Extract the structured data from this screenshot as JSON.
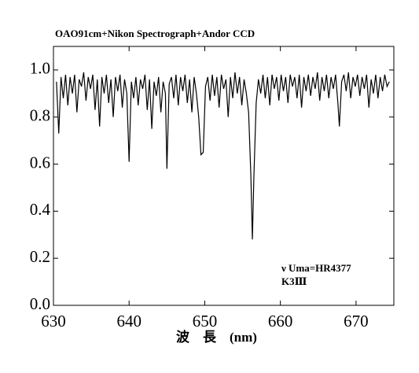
{
  "chart_data": {
    "type": "line",
    "title": "OAO91cm+Nikon Spectrograph+Andor CCD",
    "xlabel": "波　長　(nm)",
    "annotations": [
      "ν Uma=HR4377",
      "K3Ⅲ"
    ],
    "color": "#000000",
    "xlim": [
      630,
      675
    ],
    "xticks": [
      630,
      640,
      650,
      660,
      670
    ],
    "ylim": [
      0,
      1.1
    ],
    "yticks": [
      {
        "value": 0,
        "label": "0.0"
      },
      0.2,
      0.4,
      0.6,
      0.8,
      {
        "value": 1,
        "label": "1.0"
      }
    ],
    "x": [
      630.4,
      630.7,
      631.0,
      631.3,
      631.6,
      631.9,
      632.2,
      632.5,
      632.8,
      633.1,
      633.4,
      633.7,
      634.0,
      634.3,
      634.6,
      634.9,
      635.2,
      635.5,
      635.8,
      636.1,
      636.4,
      636.7,
      637.0,
      637.3,
      637.6,
      637.9,
      638.2,
      638.5,
      638.8,
      639.1,
      639.4,
      639.7,
      640.0,
      640.3,
      640.6,
      640.9,
      641.2,
      641.5,
      641.8,
      642.1,
      642.4,
      642.7,
      643.0,
      643.3,
      643.6,
      643.9,
      644.2,
      644.5,
      644.8,
      645.0,
      645.3,
      645.6,
      645.9,
      646.2,
      646.5,
      646.8,
      647.1,
      647.4,
      647.7,
      648.0,
      648.3,
      648.6,
      648.9,
      649.2,
      649.5,
      649.8,
      650.1,
      650.4,
      650.7,
      651.0,
      651.3,
      651.6,
      651.9,
      652.2,
      652.5,
      652.8,
      653.1,
      653.4,
      653.7,
      654.0,
      654.3,
      654.6,
      654.9,
      655.2,
      655.5,
      655.8,
      656.1,
      656.3,
      656.5,
      656.8,
      657.1,
      657.4,
      657.7,
      658.0,
      658.3,
      658.6,
      658.9,
      659.2,
      659.5,
      659.8,
      660.1,
      660.4,
      660.7,
      661.0,
      661.3,
      661.6,
      661.9,
      662.2,
      662.5,
      662.8,
      663.1,
      663.4,
      663.7,
      664.0,
      664.3,
      664.6,
      664.9,
      665.2,
      665.5,
      665.8,
      666.1,
      666.4,
      666.7,
      667.0,
      667.3,
      667.6,
      667.8,
      668.1,
      668.4,
      668.7,
      669.0,
      669.3,
      669.6,
      669.9,
      670.2,
      670.5,
      670.8,
      671.1,
      671.4,
      671.7,
      672.0,
      672.3,
      672.6,
      672.9,
      673.2,
      673.5,
      673.8,
      674.1,
      674.4
    ],
    "values": [
      0.95,
      0.73,
      0.97,
      0.88,
      0.98,
      0.85,
      0.97,
      0.9,
      0.98,
      0.82,
      0.96,
      0.93,
      0.99,
      0.87,
      0.97,
      0.92,
      0.98,
      0.83,
      0.96,
      0.76,
      0.97,
      0.9,
      0.98,
      0.86,
      0.96,
      0.8,
      0.97,
      0.91,
      0.98,
      0.84,
      0.96,
      0.9,
      0.61,
      0.95,
      0.88,
      0.97,
      0.85,
      0.96,
      0.92,
      0.98,
      0.83,
      0.96,
      0.75,
      0.95,
      0.89,
      0.97,
      0.82,
      0.95,
      0.9,
      0.58,
      0.94,
      0.97,
      0.88,
      0.98,
      0.85,
      0.97,
      0.91,
      0.98,
      0.86,
      0.96,
      0.82,
      0.97,
      0.9,
      0.8,
      0.64,
      0.65,
      0.93,
      0.97,
      0.87,
      0.98,
      0.89,
      0.97,
      0.84,
      0.98,
      0.92,
      0.96,
      0.8,
      0.97,
      0.88,
      0.99,
      0.9,
      0.97,
      0.85,
      0.96,
      0.9,
      0.82,
      0.55,
      0.28,
      0.55,
      0.86,
      0.96,
      0.9,
      0.98,
      0.88,
      0.97,
      0.85,
      0.98,
      0.92,
      0.97,
      0.87,
      0.98,
      0.91,
      0.97,
      0.86,
      0.98,
      0.93,
      0.97,
      0.88,
      0.98,
      0.84,
      0.97,
      0.91,
      0.98,
      0.89,
      0.97,
      0.92,
      0.99,
      0.87,
      0.97,
      0.91,
      0.98,
      0.88,
      0.97,
      0.92,
      0.98,
      0.86,
      0.76,
      0.95,
      0.98,
      0.91,
      0.99,
      0.88,
      0.97,
      0.93,
      0.98,
      0.89,
      0.97,
      0.92,
      0.98,
      0.84,
      0.96,
      0.9,
      0.98,
      0.88,
      0.97,
      0.91,
      0.98,
      0.93,
      0.95
    ]
  }
}
